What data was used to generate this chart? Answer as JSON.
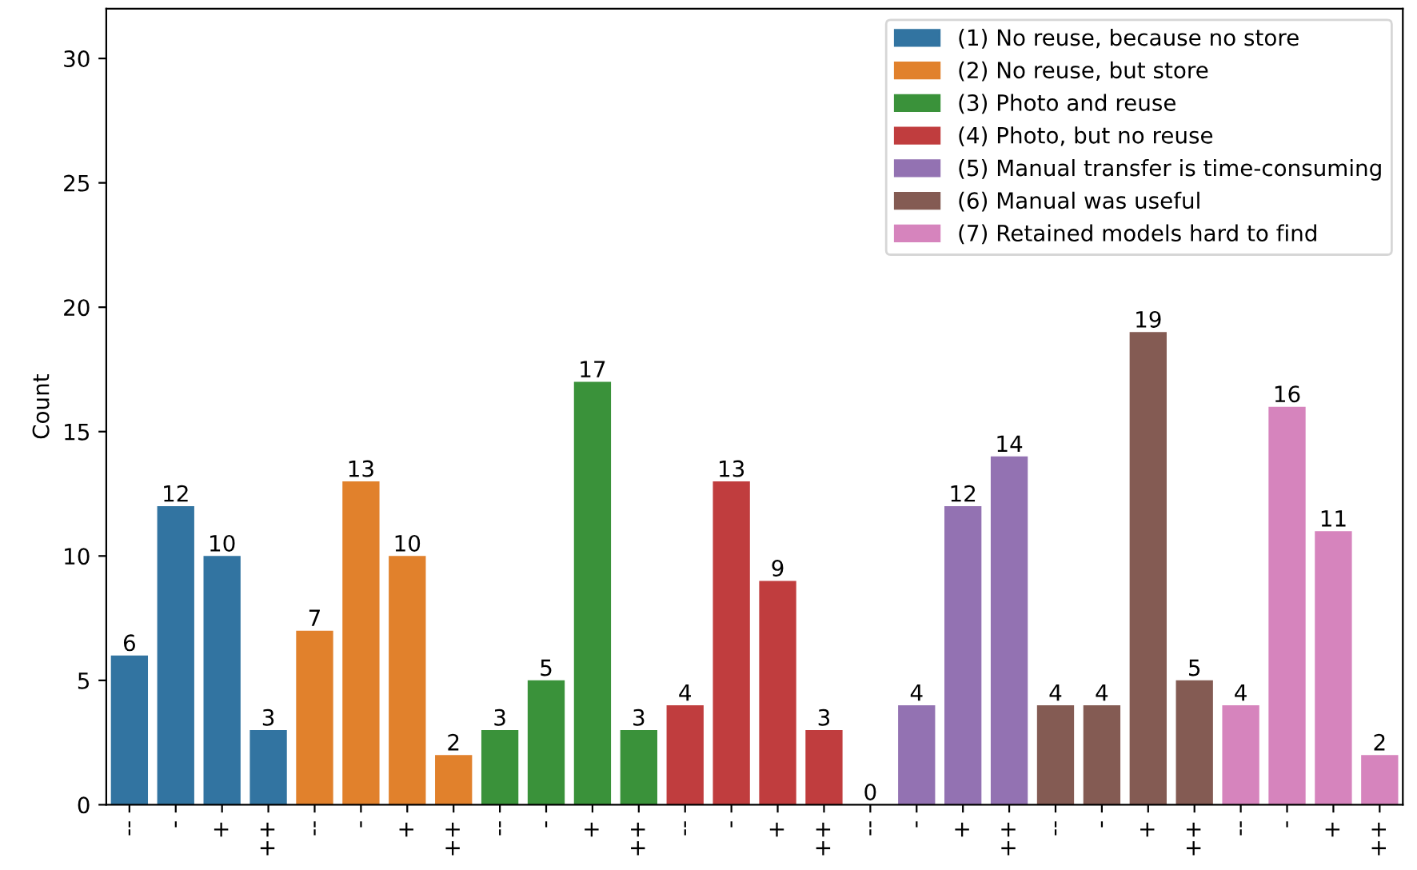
{
  "chart_data": {
    "type": "bar",
    "ylabel": "Count",
    "categories": [
      "--",
      "-",
      "+",
      "++",
      "--",
      "-",
      "+",
      "++",
      "--",
      "-",
      "+",
      "++",
      "--",
      "-",
      "+",
      "++",
      "--",
      "-",
      "+",
      "++",
      "--",
      "-",
      "+",
      "++",
      "--",
      "-",
      "+",
      "++"
    ],
    "series": [
      {
        "name": "(1) No reuse, because no store",
        "color": "#3274a1",
        "values": [
          6,
          12,
          10,
          3,
          null,
          null,
          null,
          null,
          null,
          null,
          null,
          null,
          null,
          null,
          null,
          null,
          null,
          null,
          null,
          null,
          null,
          null,
          null,
          null,
          null,
          null,
          null,
          null
        ]
      },
      {
        "name": "(2) No reuse, but store",
        "color": "#e1812c",
        "values": [
          null,
          null,
          null,
          null,
          7,
          13,
          10,
          2,
          null,
          null,
          null,
          null,
          null,
          null,
          null,
          null,
          null,
          null,
          null,
          null,
          null,
          null,
          null,
          null,
          null,
          null,
          null,
          null
        ]
      },
      {
        "name": "(3) Photo and reuse",
        "color": "#3a923a",
        "values": [
          null,
          null,
          null,
          null,
          null,
          null,
          null,
          null,
          3,
          5,
          17,
          3,
          null,
          null,
          null,
          null,
          null,
          null,
          null,
          null,
          null,
          null,
          null,
          null,
          null,
          null,
          null,
          null
        ]
      },
      {
        "name": "(4) Photo, but no reuse",
        "color": "#c03d3e",
        "values": [
          null,
          null,
          null,
          null,
          null,
          null,
          null,
          null,
          null,
          null,
          null,
          null,
          4,
          13,
          9,
          3,
          null,
          null,
          null,
          null,
          null,
          null,
          null,
          null,
          null,
          null,
          null,
          null
        ]
      },
      {
        "name": "(5) Manual transfer is time-consuming",
        "color": "#9372b2",
        "values": [
          null,
          null,
          null,
          null,
          null,
          null,
          null,
          null,
          null,
          null,
          null,
          null,
          null,
          null,
          null,
          null,
          0,
          4,
          12,
          14,
          null,
          null,
          null,
          null,
          null,
          null,
          null,
          null
        ]
      },
      {
        "name": "(6) Manual was useful",
        "color": "#845b53",
        "values": [
          null,
          null,
          null,
          null,
          null,
          null,
          null,
          null,
          null,
          null,
          null,
          null,
          null,
          null,
          null,
          null,
          null,
          null,
          null,
          null,
          4,
          4,
          19,
          5,
          null,
          null,
          null,
          null
        ]
      },
      {
        "name": "(7) Retained models hard to find",
        "color": "#d684bd",
        "values": [
          null,
          null,
          null,
          null,
          null,
          null,
          null,
          null,
          null,
          null,
          null,
          null,
          null,
          null,
          null,
          null,
          null,
          null,
          null,
          null,
          null,
          null,
          null,
          null,
          4,
          16,
          11,
          2
        ]
      }
    ],
    "ylim": [
      0,
      32
    ],
    "yticks": [
      0,
      5,
      10,
      15,
      20,
      25,
      30
    ],
    "data_labels": true,
    "legend": "top right",
    "grid": false
  }
}
